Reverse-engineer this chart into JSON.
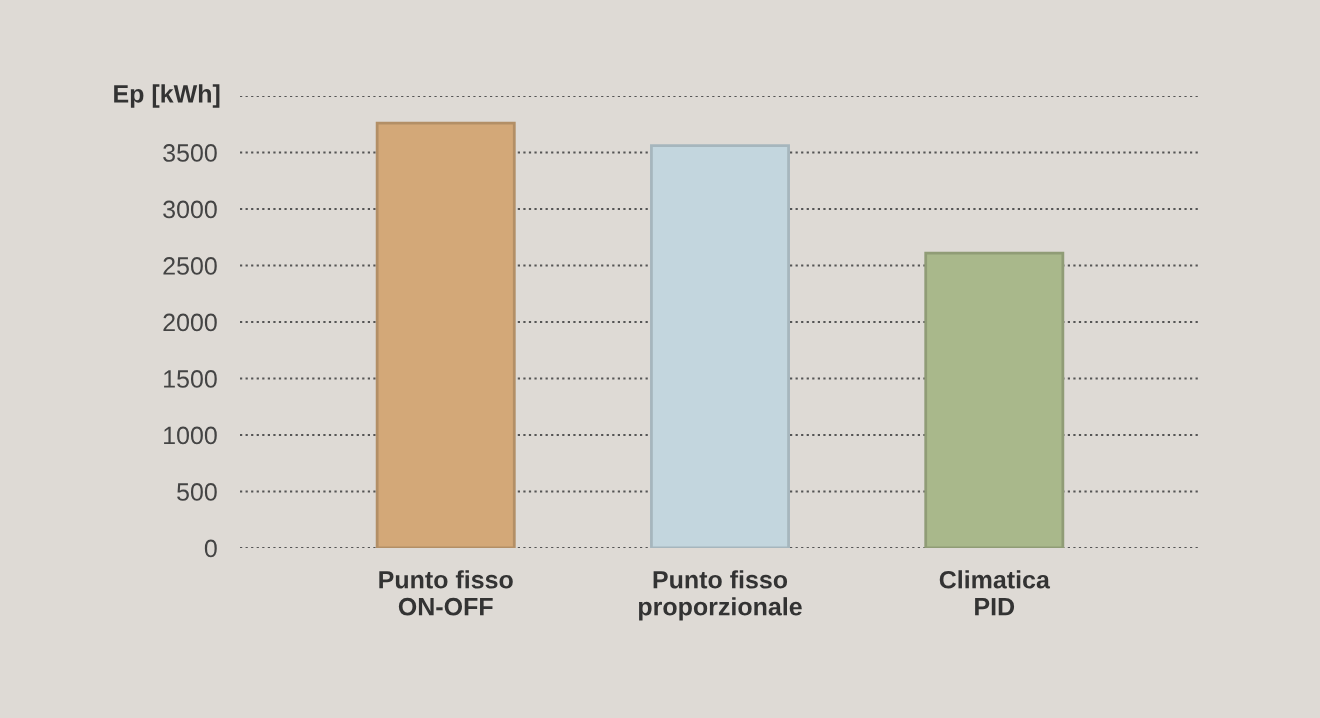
{
  "chart_data": {
    "type": "bar",
    "ylabel": "Ep [kWh]",
    "categories": [
      "Punto fisso\nON-OFF",
      "Punto fisso\nproporzionale",
      "Climatica\nPID"
    ],
    "values": [
      3760,
      3560,
      2610
    ],
    "colors": [
      "#d3a878",
      "#c3d6de",
      "#a9b88b"
    ],
    "ylim": [
      0,
      4000
    ],
    "yticks": [
      0,
      500,
      1000,
      1500,
      2000,
      2500,
      3000,
      3500,
      {
        "value": 4000,
        "label": null
      }
    ],
    "grid": "y"
  }
}
